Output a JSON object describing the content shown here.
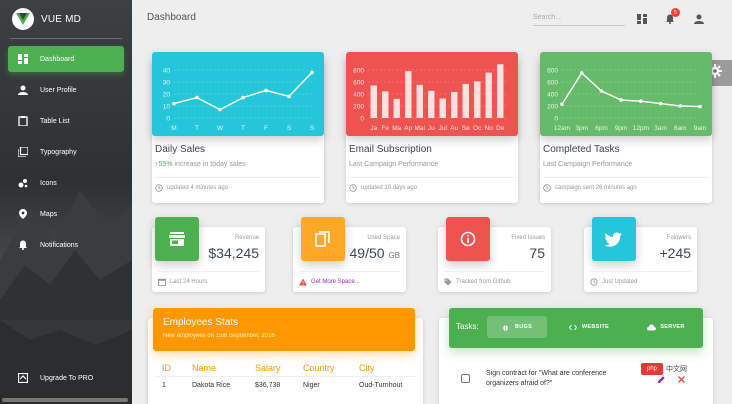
{
  "brand": {
    "title": "VUE MD"
  },
  "sidebar": {
    "items": [
      {
        "label": "Dashboard",
        "icon": "dashboard-icon"
      },
      {
        "label": "User Profile",
        "icon": "person-icon"
      },
      {
        "label": "Table List",
        "icon": "clipboard-icon"
      },
      {
        "label": "Typography",
        "icon": "library-books-icon"
      },
      {
        "label": "Icons",
        "icon": "bubble-chart-icon"
      },
      {
        "label": "Maps",
        "icon": "location-pin-icon"
      },
      {
        "label": "Notifications",
        "icon": "bell-icon"
      }
    ],
    "bottom": {
      "label": "Upgrade To PRO",
      "icon": "unarchive-icon"
    }
  },
  "topbar": {
    "title": "Dashboard",
    "search_placeholder": "Search...",
    "notifications_count": "5"
  },
  "cards": {
    "daily": {
      "title": "Daily Sales",
      "pct": "55%",
      "sub_rest": " increase in today sales",
      "footer": "updated 4 minutes ago"
    },
    "email": {
      "title": "Email Subscription",
      "sub": "Last Campaign Performance",
      "footer": "updated 10 days ago"
    },
    "completed": {
      "title": "Completed Tasks",
      "sub": "Last Campaign Performance",
      "footer": "campaign sent 26 minutes ago"
    }
  },
  "stats": {
    "revenue": {
      "label": "Revenue",
      "value": "$34,245",
      "unit": "",
      "footer": "Last 24 Hours"
    },
    "space": {
      "label": "Used Space",
      "value": "49/50",
      "unit": "GB",
      "footer": "Get More Space..."
    },
    "issues": {
      "label": "Fixed Issues",
      "value": "75",
      "unit": "",
      "footer": "Tracked from Github"
    },
    "followers": {
      "label": "Folowers",
      "value": "+245",
      "unit": "",
      "footer": "Just Updated"
    }
  },
  "employees": {
    "title": "Employees Stats",
    "subtitle": "New employees on 15th September, 2016",
    "headers": [
      "ID",
      "Name",
      "Salary",
      "Country",
      "City"
    ],
    "rows": [
      [
        "1",
        "Dakota Rice",
        "$36,738",
        "Niger",
        "Oud-Turnhout"
      ]
    ]
  },
  "tasks": {
    "label": "Tasks:",
    "tabs": [
      "BUGS",
      "WEBSITE",
      "SERVER"
    ],
    "items": [
      {
        "text": "Sign contract for \"What are conference organizers afraid of?\""
      }
    ]
  },
  "watermark": {
    "logo": "php",
    "text": "中文网"
  },
  "colors": {
    "green": "#4caf50",
    "red": "#f44336",
    "orange": "#ff9800",
    "blue": "#00acc1",
    "purple": "#9c27b0"
  },
  "chart_data": [
    {
      "type": "line",
      "categories": [
        "M",
        "T",
        "W",
        "T",
        "F",
        "S",
        "S"
      ],
      "values": [
        12,
        17,
        7,
        17,
        23,
        18,
        38
      ],
      "ylim": [
        0,
        50
      ],
      "yticks": [
        0,
        10,
        20,
        30,
        40
      ],
      "grid": true
    },
    {
      "type": "bar",
      "categories": [
        "Ja",
        "Fe",
        "Ma",
        "Ap",
        "Mai",
        "Ju",
        "Jul",
        "Au",
        "Se",
        "Oc",
        "No",
        "De"
      ],
      "values": [
        542,
        443,
        320,
        780,
        553,
        453,
        326,
        434,
        568,
        610,
        756,
        895
      ],
      "ylim": [
        0,
        1000
      ],
      "yticks": [
        0,
        200,
        400,
        600,
        800
      ],
      "grid": true
    },
    {
      "type": "line",
      "categories": [
        "12am",
        "3pm",
        "6pm",
        "9pm",
        "12pm",
        "3am",
        "6am",
        "9am"
      ],
      "values": [
        230,
        750,
        450,
        300,
        280,
        240,
        200,
        190
      ],
      "ylim": [
        0,
        1000
      ],
      "yticks": [
        0,
        200,
        400,
        600,
        800
      ],
      "grid": true
    }
  ]
}
